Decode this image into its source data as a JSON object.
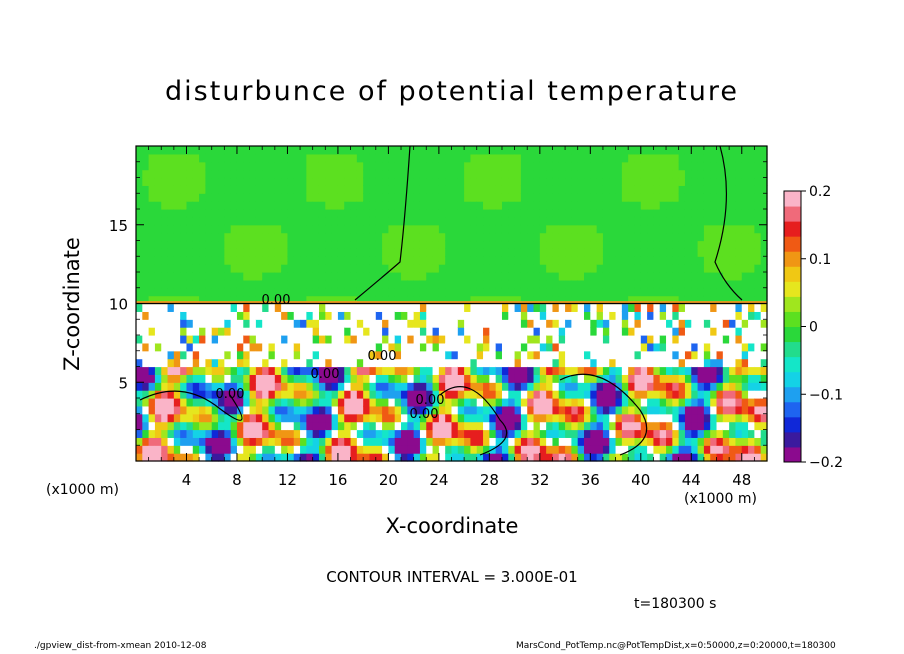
{
  "chart_data": {
    "type": "heatmap",
    "title": "disturbunce of potential temperature",
    "xlabel": "X-coordinate",
    "ylabel": "Z-coordinate",
    "xunit": "(x1000 m)",
    "xunit_right": "(x1000 m)",
    "xlim": [
      0,
      50
    ],
    "ylim": [
      0,
      20
    ],
    "xticks": [
      4,
      8,
      12,
      16,
      20,
      24,
      28,
      32,
      36,
      40,
      44,
      48
    ],
    "yticks": [
      5,
      10,
      15
    ],
    "colorbar": {
      "range": [
        -0.2,
        0.2
      ],
      "ticks": [
        {
          "value": 0.2,
          "label": "0.2"
        },
        {
          "value": 0.1,
          "label": "0.1"
        },
        {
          "value": 0,
          "label": "0"
        },
        {
          "value": -0.1,
          "label": "−0.1"
        },
        {
          "value": -0.2,
          "label": "−0.2"
        }
      ],
      "colors": [
        "#8b0a8e",
        "#3a1a9e",
        "#1028d8",
        "#1e64f0",
        "#1ea0f0",
        "#14d2e6",
        "#14e6c8",
        "#22dc8c",
        "#2ad83a",
        "#5ce020",
        "#a0e61e",
        "#e6e61e",
        "#f0c814",
        "#f09614",
        "#f05a14",
        "#e61e1e",
        "#f06a7a",
        "#fab4c8"
      ]
    },
    "contour_labels": [
      "0.00",
      "0.00",
      "0.00",
      "0.00",
      "0.00",
      "0.00"
    ],
    "contour_interval": "CONTOUR INTERVAL = 3.000E-01",
    "time_label": "t=180300 s"
  },
  "footer": {
    "left": "./gpview_dist-from-xmean   2010-12-08",
    "right": "MarsCond_PotTemp.nc@PotTempDist,x=0:50000,z=0:20000,t=180300"
  }
}
